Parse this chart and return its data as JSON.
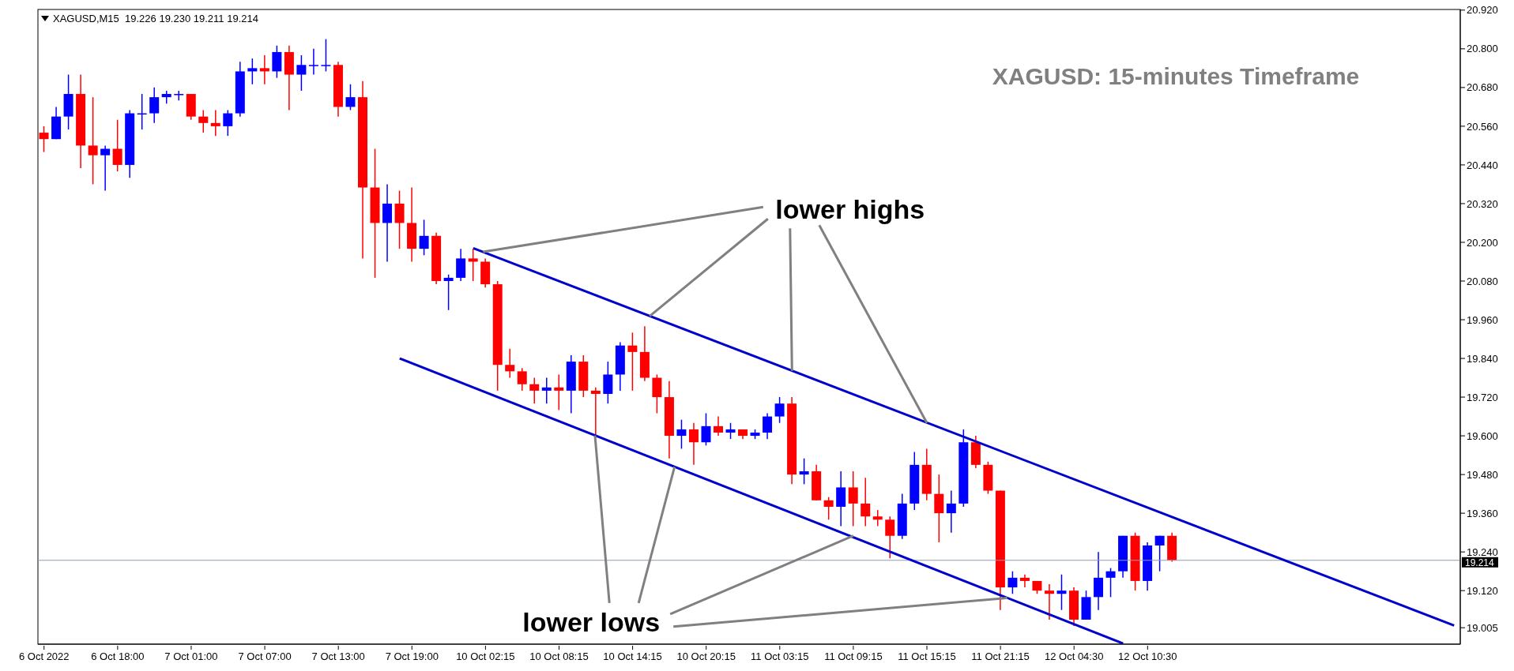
{
  "chart_data": {
    "type": "candlestick",
    "title": "XAGUSD: 15-minutes Timeframe",
    "annotations": [
      "XAGUSD,M15  19.226 19.230 19.211 19.214",
      {
        "text": "lower highs",
        "x": "11 Oct 15:15",
        "y": 19.64
      },
      {
        "text": "lower lows",
        "x": "11 Oct 09:15",
        "y": 19.29
      }
    ],
    "categories": [
      "6 Oct 2022",
      null,
      null,
      null,
      null,
      null,
      "6 Oct 18:00",
      null,
      null,
      null,
      null,
      null,
      "7 Oct 01:00",
      null,
      null,
      null,
      null,
      null,
      "7 Oct 07:00",
      null,
      null,
      null,
      null,
      null,
      "7 Oct 13:00",
      null,
      null,
      null,
      null,
      null,
      "7 Oct 19:00",
      null,
      null,
      null,
      null,
      null,
      "10 Oct 02:15",
      null,
      null,
      null,
      null,
      null,
      "10 Oct 08:15",
      null,
      null,
      null,
      null,
      null,
      "10 Oct 14:15",
      null,
      null,
      null,
      null,
      null,
      "10 Oct 20:15",
      null,
      null,
      null,
      null,
      null,
      "11 Oct 03:15",
      null,
      null,
      null,
      null,
      null,
      "11 Oct 09:15",
      null,
      null,
      null,
      null,
      null,
      "11 Oct 15:15",
      null,
      null,
      null,
      null,
      null,
      "11 Oct 21:15",
      null,
      null,
      null,
      null,
      null,
      "12 Oct 04:30",
      null,
      null,
      null,
      null,
      null,
      "12 Oct 10:30",
      null,
      null,
      null,
      null,
      null,
      null,
      null,
      null,
      null,
      null,
      null,
      null,
      null,
      null,
      null,
      null,
      null,
      null,
      null,
      null,
      null,
      null,
      null,
      null,
      null
    ],
    "ohlc": [
      [
        20.54,
        20.56,
        20.48,
        20.52
      ],
      [
        20.52,
        20.62,
        20.52,
        20.59
      ],
      [
        20.59,
        20.72,
        20.55,
        20.66
      ],
      [
        20.66,
        20.72,
        20.43,
        20.5
      ],
      [
        20.5,
        20.65,
        20.38,
        20.47
      ],
      [
        20.47,
        20.5,
        20.36,
        20.49
      ],
      [
        20.49,
        20.58,
        20.42,
        20.44
      ],
      [
        20.44,
        20.61,
        20.4,
        20.6
      ],
      [
        20.6,
        20.66,
        20.55,
        20.6
      ],
      [
        20.6,
        20.68,
        20.57,
        20.65
      ],
      [
        20.65,
        20.67,
        20.63,
        20.66
      ],
      [
        20.66,
        20.67,
        20.64,
        20.66
      ],
      [
        20.66,
        20.66,
        20.58,
        20.59
      ],
      [
        20.59,
        20.61,
        20.54,
        20.57
      ],
      [
        20.57,
        20.61,
        20.53,
        20.56
      ],
      [
        20.56,
        20.61,
        20.53,
        20.6
      ],
      [
        20.6,
        20.76,
        20.59,
        20.73
      ],
      [
        20.73,
        20.77,
        20.69,
        20.74
      ],
      [
        20.74,
        20.78,
        20.69,
        20.73
      ],
      [
        20.73,
        20.81,
        20.71,
        20.79
      ],
      [
        20.79,
        20.81,
        20.61,
        20.72
      ],
      [
        20.72,
        20.78,
        20.67,
        20.75
      ],
      [
        20.75,
        20.8,
        20.72,
        20.75
      ],
      [
        20.75,
        20.83,
        20.73,
        20.75
      ],
      [
        20.75,
        20.76,
        20.59,
        20.62
      ],
      [
        20.62,
        20.69,
        20.61,
        20.65
      ],
      [
        20.65,
        20.7,
        20.15,
        20.37
      ],
      [
        20.37,
        20.49,
        20.09,
        20.26
      ],
      [
        20.26,
        20.38,
        20.14,
        20.32
      ],
      [
        20.32,
        20.36,
        20.18,
        20.26
      ],
      [
        20.26,
        20.37,
        20.14,
        20.18
      ],
      [
        20.18,
        20.27,
        20.16,
        20.22
      ],
      [
        20.22,
        20.23,
        20.07,
        20.08
      ],
      [
        20.08,
        20.1,
        19.99,
        20.09
      ],
      [
        20.09,
        20.18,
        20.08,
        20.15
      ],
      [
        20.15,
        20.18,
        20.08,
        20.14
      ],
      [
        20.14,
        20.15,
        20.06,
        20.07
      ],
      [
        20.07,
        20.08,
        19.74,
        19.82
      ],
      [
        19.82,
        19.87,
        19.78,
        19.8
      ],
      [
        19.8,
        19.81,
        19.74,
        19.76
      ],
      [
        19.76,
        19.78,
        19.7,
        19.74
      ],
      [
        19.74,
        19.78,
        19.7,
        19.75
      ],
      [
        19.75,
        19.79,
        19.68,
        19.74
      ],
      [
        19.74,
        19.85,
        19.67,
        19.83
      ],
      [
        19.83,
        19.85,
        19.72,
        19.74
      ],
      [
        19.74,
        19.75,
        19.6,
        19.73
      ],
      [
        19.73,
        19.83,
        19.7,
        19.79
      ],
      [
        19.79,
        19.89,
        19.74,
        19.88
      ],
      [
        19.88,
        19.92,
        19.74,
        19.86
      ],
      [
        19.86,
        19.94,
        19.77,
        19.78
      ],
      [
        19.78,
        19.79,
        19.67,
        19.72
      ],
      [
        19.72,
        19.77,
        19.53,
        19.6
      ],
      [
        19.6,
        19.65,
        19.56,
        19.62
      ],
      [
        19.62,
        19.64,
        19.51,
        19.58
      ],
      [
        19.58,
        19.67,
        19.57,
        19.63
      ],
      [
        19.63,
        19.66,
        19.6,
        19.61
      ],
      [
        19.61,
        19.64,
        19.59,
        19.62
      ],
      [
        19.62,
        19.62,
        19.59,
        19.6
      ],
      [
        19.6,
        19.62,
        19.59,
        19.61
      ],
      [
        19.61,
        19.67,
        19.59,
        19.66
      ],
      [
        19.66,
        19.72,
        19.64,
        19.7
      ],
      [
        19.7,
        19.72,
        19.45,
        19.48
      ],
      [
        19.48,
        19.53,
        19.45,
        19.49
      ],
      [
        19.49,
        19.51,
        19.4,
        19.4
      ],
      [
        19.4,
        19.41,
        19.34,
        19.38
      ],
      [
        19.38,
        19.49,
        19.32,
        19.44
      ],
      [
        19.44,
        19.49,
        19.32,
        19.39
      ],
      [
        19.39,
        19.47,
        19.32,
        19.35
      ],
      [
        19.35,
        19.37,
        19.32,
        19.34
      ],
      [
        19.34,
        19.35,
        19.22,
        19.29
      ],
      [
        19.29,
        19.42,
        19.28,
        19.39
      ],
      [
        19.39,
        19.55,
        19.37,
        19.51
      ],
      [
        19.51,
        19.56,
        19.4,
        19.42
      ],
      [
        19.42,
        19.48,
        19.27,
        19.36
      ],
      [
        19.36,
        19.43,
        19.3,
        19.39
      ],
      [
        19.39,
        19.62,
        19.38,
        19.58
      ],
      [
        19.58,
        19.6,
        19.5,
        19.51
      ],
      [
        19.51,
        19.52,
        19.42,
        19.43
      ],
      [
        19.43,
        19.43,
        19.06,
        19.13
      ],
      [
        19.13,
        19.18,
        19.11,
        19.16
      ],
      [
        19.16,
        19.17,
        19.13,
        19.15
      ],
      [
        19.15,
        19.15,
        19.11,
        19.12
      ],
      [
        19.12,
        19.14,
        19.03,
        19.11
      ],
      [
        19.11,
        19.17,
        19.06,
        19.12
      ],
      [
        19.12,
        19.13,
        19.01,
        19.03
      ],
      [
        19.03,
        19.12,
        19.03,
        19.1
      ],
      [
        19.1,
        19.24,
        19.06,
        19.16
      ],
      [
        19.16,
        19.19,
        19.1,
        19.18
      ],
      [
        19.18,
        19.29,
        19.16,
        19.29
      ],
      [
        19.29,
        19.3,
        19.12,
        19.15
      ],
      [
        19.15,
        19.27,
        19.12,
        19.26
      ],
      [
        19.26,
        19.29,
        19.18,
        19.29
      ],
      [
        19.29,
        19.3,
        19.21,
        19.214
      ],
      null,
      null,
      null,
      null,
      null,
      null,
      null,
      null,
      null,
      null,
      null,
      null,
      null,
      null,
      null,
      null,
      null,
      null,
      null,
      null,
      null,
      null,
      null
    ],
    "colors": [
      "#ff0000",
      "#0000ff",
      "#0000ff",
      "#ff0000",
      "#ff0000",
      "#0000ff",
      "#ff0000",
      "#0000ff",
      "#0000ff",
      "#0000ff",
      "#0000ff",
      "#0000ff",
      "#ff0000",
      "#ff0000",
      "#ff0000",
      "#0000ff",
      "#0000ff",
      "#0000ff",
      "#ff0000",
      "#0000ff",
      "#ff0000",
      "#0000ff",
      "#0000ff",
      "#0000ff",
      "#ff0000",
      "#0000ff",
      "#ff0000",
      "#ff0000",
      "#0000ff",
      "#ff0000",
      "#ff0000",
      "#0000ff",
      "#ff0000",
      "#0000ff",
      "#0000ff",
      "#ff0000",
      "#ff0000",
      "#ff0000",
      "#ff0000",
      "#ff0000",
      "#ff0000",
      "#0000ff",
      "#ff0000",
      "#0000ff",
      "#ff0000",
      "#ff0000",
      "#0000ff",
      "#0000ff",
      "#ff0000",
      "#ff0000",
      "#ff0000",
      "#ff0000",
      "#0000ff",
      "#ff0000",
      "#0000ff",
      "#ff0000",
      "#0000ff",
      "#ff0000",
      "#0000ff",
      "#0000ff",
      "#0000ff",
      "#ff0000",
      "#0000ff",
      "#ff0000",
      "#ff0000",
      "#0000ff",
      "#ff0000",
      "#ff0000",
      "#ff0000",
      "#ff0000",
      "#0000ff",
      "#0000ff",
      "#ff0000",
      "#ff0000",
      "#0000ff",
      "#0000ff",
      "#ff0000",
      "#ff0000",
      "#ff0000",
      "#0000ff",
      "#ff0000",
      "#ff0000",
      "#ff0000",
      "#0000ff",
      "#ff0000",
      "#0000ff",
      "#0000ff",
      "#0000ff",
      "#0000ff",
      "#ff0000",
      "#0000ff",
      "#0000ff",
      "#ff0000",
      null,
      null,
      null,
      null,
      null,
      null,
      null,
      null,
      null,
      null,
      null,
      null,
      null,
      null,
      null,
      null,
      null,
      null,
      null,
      null,
      null,
      null,
      null
    ],
    "series": [
      {
        "type": "line",
        "color": "#0000cc",
        "values": [
          null,
          null,
          null,
          null,
          null,
          null,
          null,
          null,
          null,
          null,
          null,
          null,
          null,
          null,
          null,
          null,
          null,
          null,
          null,
          null,
          null,
          null,
          null,
          null,
          null,
          null,
          null,
          null,
          null,
          null,
          null,
          null,
          null,
          null,
          null,
          20.182,
          null,
          null,
          null,
          null,
          null,
          null,
          null,
          null,
          null,
          null,
          null,
          null,
          null,
          null,
          null,
          null,
          null,
          null,
          null,
          null,
          null,
          null,
          null,
          null,
          null,
          null,
          null,
          null,
          null,
          null,
          null,
          null,
          null,
          null,
          null,
          null,
          null,
          null,
          null,
          null,
          null,
          null,
          null,
          null,
          null,
          null,
          null,
          null,
          null,
          null,
          null,
          null,
          null,
          null,
          null,
          null,
          null,
          null,
          null,
          null,
          null,
          null,
          null,
          null,
          null,
          null,
          null,
          null,
          null,
          null,
          null,
          null,
          null,
          null,
          null,
          null,
          null,
          null,
          null,
          19.012
        ]
      },
      {
        "type": "line",
        "color": "#0000cc",
        "values": [
          null,
          null,
          null,
          null,
          null,
          null,
          null,
          null,
          null,
          null,
          null,
          null,
          null,
          null,
          null,
          null,
          null,
          null,
          null,
          null,
          null,
          null,
          null,
          null,
          null,
          null,
          null,
          null,
          null,
          19.84,
          null,
          null,
          null,
          null,
          null,
          null,
          null,
          null,
          null,
          null,
          null,
          null,
          null,
          null,
          null,
          null,
          null,
          null,
          null,
          null,
          null,
          null,
          null,
          null,
          null,
          null,
          null,
          null,
          null,
          null,
          null,
          null,
          null,
          null,
          null,
          null,
          null,
          null,
          null,
          null,
          null,
          null,
          null,
          null,
          null,
          null,
          null,
          null,
          null,
          null,
          null,
          null,
          null,
          null,
          null,
          null,
          null,
          null,
          18.956,
          null,
          null,
          null,
          null,
          null,
          null,
          null,
          null,
          null,
          null,
          null,
          null,
          null,
          null,
          null,
          null,
          null,
          null,
          null,
          null,
          null,
          null,
          null,
          null,
          null,
          null,
          null
        ]
      }
    ],
    "marker": "none",
    "ylim": [
      18.954,
      20.922
    ],
    "yticks": [
      {
        "value": 19.005,
        "label": "19.005"
      },
      {
        "value": 19.12,
        "label": "19.120"
      },
      {
        "value": 19.24,
        "label": "19.240"
      },
      {
        "value": 19.36,
        "label": "19.360"
      },
      {
        "value": 19.48,
        "label": "19.480"
      },
      {
        "value": 19.6,
        "label": "19.600"
      },
      {
        "value": 19.72,
        "label": "19.720"
      },
      {
        "value": 19.84,
        "label": "19.840"
      },
      {
        "value": 19.96,
        "label": "19.960"
      },
      {
        "value": 20.08,
        "label": "20.080"
      },
      {
        "value": 20.2,
        "label": "20.200"
      },
      {
        "value": 20.32,
        "label": "20.320"
      },
      {
        "value": 20.44,
        "label": "20.440"
      },
      {
        "value": 20.56,
        "label": "20.560"
      },
      {
        "value": 20.68,
        "label": "20.680"
      },
      {
        "value": 20.8,
        "label": "20.800"
      },
      {
        "value": 20.92,
        "label": "20.920"
      }
    ],
    "ref_lines": [
      {
        "axis": "y",
        "value": 19.214,
        "label": "19.214",
        "color": "#8d9db5"
      }
    ]
  }
}
